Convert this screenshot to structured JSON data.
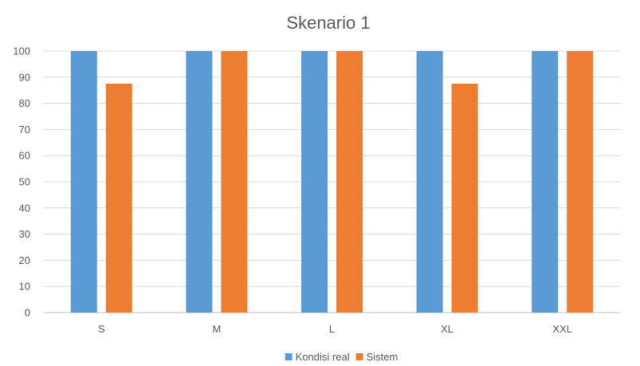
{
  "chart_data": {
    "type": "bar",
    "title": "Skenario 1",
    "xlabel": "",
    "ylabel": "",
    "categories": [
      "S",
      "M",
      "L",
      "XL",
      "XXL"
    ],
    "series": [
      {
        "name": "Kondisi real",
        "values": [
          100,
          100,
          100,
          100,
          100
        ],
        "color": "#5b9bd5"
      },
      {
        "name": "Sistem",
        "values": [
          87.5,
          100,
          100,
          87.5,
          100
        ],
        "color": "#ed7d31"
      }
    ],
    "ylim": [
      0,
      100
    ],
    "yticks": [
      0,
      10,
      20,
      30,
      40,
      50,
      60,
      70,
      80,
      90,
      100
    ],
    "grid": true,
    "legend_position": "bottom"
  }
}
